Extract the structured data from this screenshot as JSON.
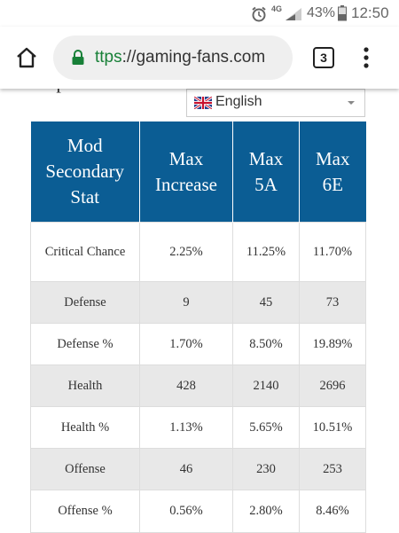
{
  "status_bar": {
    "network": "4G",
    "battery": "43%",
    "time": "12:50"
  },
  "browser": {
    "url_scheme": "ttps",
    "url_rest": "://gaming-fans.com",
    "tab_count": "3"
  },
  "page": {
    "partial_text": "shape and have a v",
    "language": "English"
  },
  "table": {
    "headers": [
      "Mod Secondary Stat",
      "Max Increase",
      "Max 5A",
      "Max 6E"
    ],
    "rows": [
      [
        "Critical Chance",
        "2.25%",
        "11.25%",
        "11.70%"
      ],
      [
        "Defense",
        "9",
        "45",
        "73"
      ],
      [
        "Defense %",
        "1.70%",
        "8.50%",
        "19.89%"
      ],
      [
        "Health",
        "428",
        "2140",
        "2696"
      ],
      [
        "Health %",
        "1.13%",
        "5.65%",
        "10.51%"
      ],
      [
        "Offense",
        "46",
        "230",
        "253"
      ],
      [
        "Offense %",
        "0.56%",
        "2.80%",
        "8.46%"
      ]
    ]
  }
}
